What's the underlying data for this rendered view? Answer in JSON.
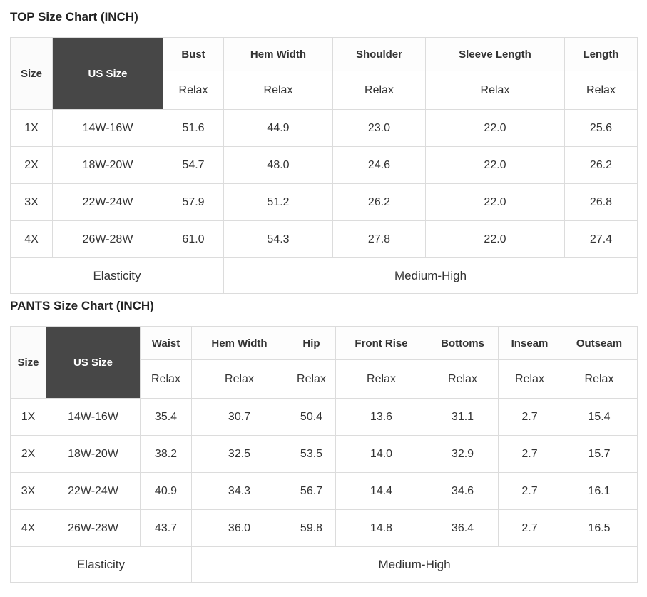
{
  "colors": {
    "dark_header_bg": "#474747",
    "dark_header_text": "#ffffff",
    "border": "#dcdcdc",
    "text": "#333333",
    "title": "#222222",
    "background": "#ffffff"
  },
  "tables": [
    {
      "title": "TOP Size Chart (INCH)",
      "corner": {
        "size": "Size",
        "us_size": "US Size"
      },
      "measurement_columns": [
        "Bust",
        "Hem Width",
        "Shoulder",
        "Sleeve Length",
        "Length"
      ],
      "fit_row_label": "Relax",
      "rows": [
        {
          "size": "1X",
          "us_size": "14W-16W",
          "values": [
            "51.6",
            "44.9",
            "23.0",
            "22.0",
            "25.6"
          ]
        },
        {
          "size": "2X",
          "us_size": "18W-20W",
          "values": [
            "54.7",
            "48.0",
            "24.6",
            "22.0",
            "26.2"
          ]
        },
        {
          "size": "3X",
          "us_size": "22W-24W",
          "values": [
            "57.9",
            "51.2",
            "26.2",
            "22.0",
            "26.8"
          ]
        },
        {
          "size": "4X",
          "us_size": "26W-28W",
          "values": [
            "61.0",
            "54.3",
            "27.8",
            "22.0",
            "27.4"
          ]
        }
      ],
      "footer": {
        "label": "Elasticity",
        "value": "Medium-High"
      }
    },
    {
      "title": "PANTS Size Chart (INCH)",
      "corner": {
        "size": "Size",
        "us_size": "US Size"
      },
      "measurement_columns": [
        "Waist",
        "Hem Width",
        "Hip",
        "Front Rise",
        "Bottoms",
        "Inseam",
        "Outseam"
      ],
      "fit_row_label": "Relax",
      "rows": [
        {
          "size": "1X",
          "us_size": "14W-16W",
          "values": [
            "35.4",
            "30.7",
            "50.4",
            "13.6",
            "31.1",
            "2.7",
            "15.4"
          ]
        },
        {
          "size": "2X",
          "us_size": "18W-20W",
          "values": [
            "38.2",
            "32.5",
            "53.5",
            "14.0",
            "32.9",
            "2.7",
            "15.7"
          ]
        },
        {
          "size": "3X",
          "us_size": "22W-24W",
          "values": [
            "40.9",
            "34.3",
            "56.7",
            "14.4",
            "34.6",
            "2.7",
            "16.1"
          ]
        },
        {
          "size": "4X",
          "us_size": "26W-28W",
          "values": [
            "43.7",
            "36.0",
            "59.8",
            "14.8",
            "36.4",
            "2.7",
            "16.5"
          ]
        }
      ],
      "footer": {
        "label": "Elasticity",
        "value": "Medium-High"
      }
    }
  ]
}
